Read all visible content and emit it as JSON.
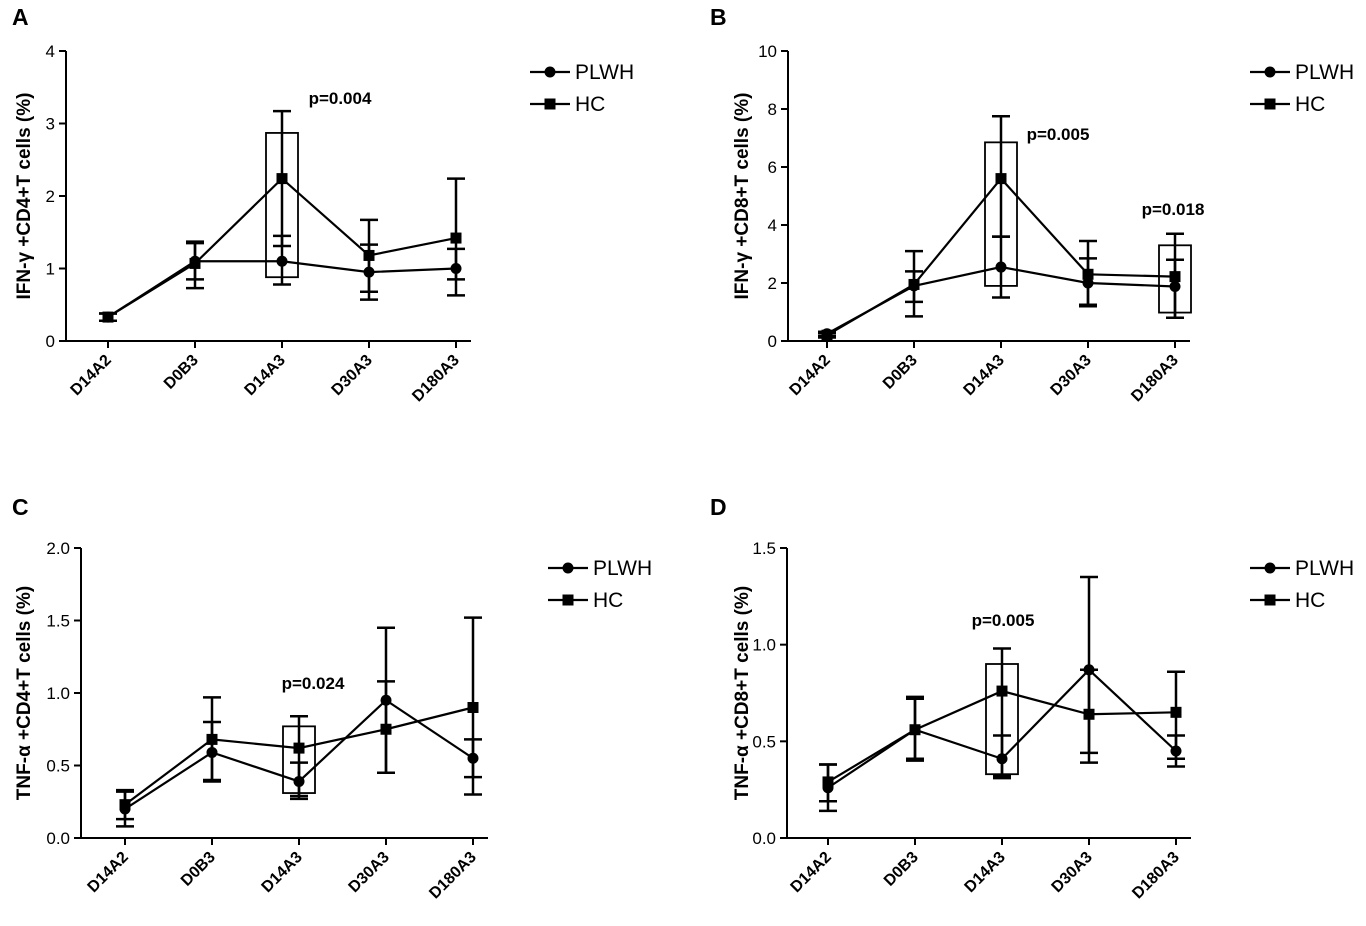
{
  "figure": {
    "panel_count": 4
  },
  "chart_data": [
    {
      "panel": "A",
      "type": "line",
      "ylabel": "IFN-γ +CD4+T cells (%)",
      "categories": [
        "D14A2",
        "D0B3",
        "D14A3",
        "D30A3",
        "D180A3"
      ],
      "ylim": [
        0,
        4
      ],
      "yticks": [
        0,
        1,
        2,
        3,
        4
      ],
      "ytick_labels": [
        "0",
        "1",
        "2",
        "3",
        "4"
      ],
      "series": [
        {
          "name": "PLWH",
          "marker": "circle",
          "values": [
            0.33,
            1.1,
            1.1,
            0.95,
            1.0
          ],
          "err_low": [
            0.28,
            0.85,
            0.78,
            0.57,
            0.63
          ],
          "err_high": [
            0.38,
            1.35,
            1.45,
            1.33,
            1.27
          ]
        },
        {
          "name": "HC",
          "marker": "square",
          "values": [
            0.33,
            1.07,
            2.24,
            1.18,
            1.42
          ],
          "err_low": [
            0.28,
            0.73,
            1.31,
            0.68,
            0.85
          ],
          "err_high": [
            0.38,
            1.37,
            3.17,
            1.67,
            2.24
          ]
        }
      ],
      "annotations": [
        {
          "text": "p=0.004",
          "category": "D14A3",
          "box": [
            0.88,
            2.87
          ]
        }
      ],
      "legend": {
        "position": "right",
        "entries": [
          "PLWH",
          "HC"
        ]
      }
    },
    {
      "panel": "B",
      "type": "line",
      "ylabel": "IFN-γ +CD8+T cells (%)",
      "categories": [
        "D14A2",
        "D0B3",
        "D14A3",
        "D30A3",
        "D180A3"
      ],
      "ylim": [
        0,
        10
      ],
      "yticks": [
        0,
        2,
        4,
        6,
        8,
        10
      ],
      "ytick_labels": [
        "0",
        "2",
        "4",
        "6",
        "8",
        "10"
      ],
      "series": [
        {
          "name": "PLWH",
          "marker": "circle",
          "values": [
            0.25,
            1.9,
            2.55,
            2.0,
            1.88
          ],
          "err_low": [
            0.18,
            0.85,
            1.5,
            1.25,
            0.8
          ],
          "err_high": [
            0.32,
            2.4,
            3.6,
            2.85,
            2.8
          ]
        },
        {
          "name": "HC",
          "marker": "square",
          "values": [
            0.2,
            1.95,
            5.6,
            2.3,
            2.22
          ],
          "err_low": [
            0.12,
            1.35,
            3.6,
            1.2,
            0.8
          ],
          "err_high": [
            0.28,
            3.1,
            7.75,
            3.45,
            3.7
          ]
        }
      ],
      "annotations": [
        {
          "text": "p=0.005",
          "category": "D14A3",
          "box": [
            1.9,
            6.85
          ]
        },
        {
          "text": "p=0.018",
          "category": "D180A3",
          "box": [
            0.98,
            3.3
          ]
        }
      ],
      "legend": {
        "position": "right",
        "entries": [
          "PLWH",
          "HC"
        ]
      }
    },
    {
      "panel": "C",
      "type": "line",
      "ylabel": "TNF-α +CD4+T cells (%)",
      "categories": [
        "D14A2",
        "D0B3",
        "D14A3",
        "D30A3",
        "D180A3"
      ],
      "ylim": [
        0,
        2.0
      ],
      "yticks": [
        0,
        0.5,
        1.0,
        1.5,
        2.0
      ],
      "ytick_labels": [
        "0.0",
        "0.5",
        "1.0",
        "1.5",
        "2.0"
      ],
      "series": [
        {
          "name": "PLWH",
          "marker": "circle",
          "values": [
            0.2,
            0.59,
            0.39,
            0.95,
            0.55
          ],
          "err_low": [
            0.08,
            0.39,
            0.27,
            0.45,
            0.3
          ],
          "err_high": [
            0.32,
            0.8,
            0.52,
            1.45,
            0.68
          ]
        },
        {
          "name": "HC",
          "marker": "square",
          "values": [
            0.23,
            0.68,
            0.62,
            0.75,
            0.9
          ],
          "err_low": [
            0.13,
            0.4,
            0.29,
            0.45,
            0.42
          ],
          "err_high": [
            0.33,
            0.97,
            0.84,
            1.08,
            1.52
          ]
        }
      ],
      "annotations": [
        {
          "text": "p=0.024",
          "category": "D14A3",
          "box": [
            0.31,
            0.77
          ]
        }
      ],
      "legend": {
        "position": "right",
        "entries": [
          "PLWH",
          "HC"
        ]
      }
    },
    {
      "panel": "D",
      "type": "line",
      "ylabel": "TNF-α +CD8+T cells (%)",
      "categories": [
        "D14A2",
        "D0B3",
        "D14A3",
        "D30A3",
        "D180A3"
      ],
      "ylim": [
        0,
        1.5
      ],
      "yticks": [
        0,
        0.5,
        1.0,
        1.5
      ],
      "ytick_labels": [
        "0.0",
        "0.5",
        "1.0",
        "1.5"
      ],
      "series": [
        {
          "name": "PLWH",
          "marker": "circle",
          "values": [
            0.26,
            0.56,
            0.41,
            0.87,
            0.45
          ],
          "err_low": [
            0.14,
            0.4,
            0.31,
            0.39,
            0.37
          ],
          "err_high": [
            0.38,
            0.73,
            0.53,
            1.35,
            0.53
          ]
        },
        {
          "name": "HC",
          "marker": "square",
          "values": [
            0.29,
            0.56,
            0.76,
            0.64,
            0.65
          ],
          "err_low": [
            0.19,
            0.41,
            0.32,
            0.44,
            0.41
          ],
          "err_high": [
            0.38,
            0.72,
            0.98,
            0.87,
            0.86
          ]
        }
      ],
      "annotations": [
        {
          "text": "p=0.005",
          "category": "D14A3",
          "box": [
            0.33,
            0.9
          ]
        }
      ],
      "legend": {
        "position": "right",
        "entries": [
          "PLWH",
          "HC"
        ]
      }
    }
  ]
}
